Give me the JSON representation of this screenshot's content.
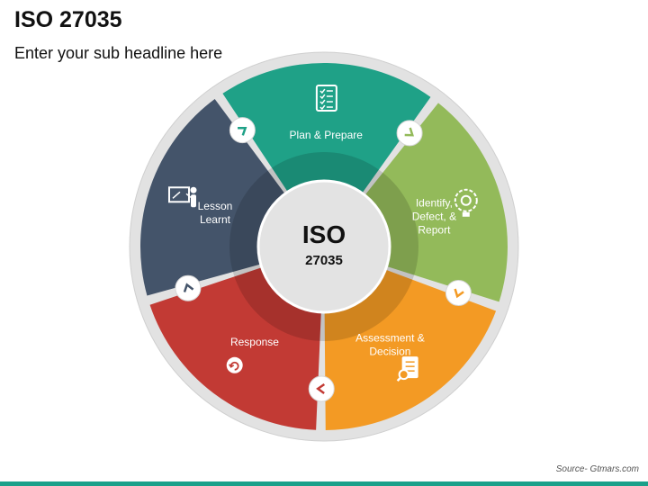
{
  "header": {
    "title": "ISO 27035",
    "subtitle": "Enter your sub headline here"
  },
  "diagram": {
    "center": {
      "title": "ISO",
      "subtitle": "27035"
    },
    "segments": [
      {
        "lines": [
          "Plan & Prepare"
        ],
        "color": "#1fa187",
        "icon": "checklist-icon"
      },
      {
        "lines": [
          "Identify,",
          "Defect, &",
          "Report"
        ],
        "color": "#93ba5a",
        "icon": "lightbulb-gear-icon"
      },
      {
        "lines": [
          "Assessment &",
          "Decision"
        ],
        "color": "#f39a24",
        "icon": "document-search-icon"
      },
      {
        "lines": [
          "Response"
        ],
        "color": "#c23a34",
        "icon": "chat-refresh-icon"
      },
      {
        "lines": [
          "Lesson",
          "Learnt"
        ],
        "color": "#44546a",
        "icon": "teacher-board-icon"
      }
    ]
  },
  "footer": {
    "source": "Source- Gtmars.com"
  },
  "colors": {
    "accent": "#1aa08a",
    "outer_ring": "#e2e2e2",
    "center": "#e3e3e3"
  }
}
